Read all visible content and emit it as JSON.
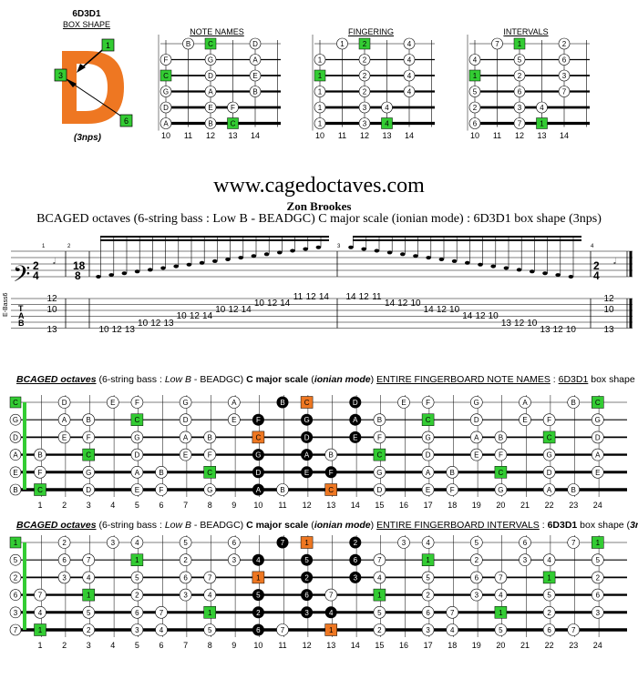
{
  "header": {
    "shape_code": "6D3D1",
    "shape_label": "BOX SHAPE",
    "shape_letter": "D",
    "shape_numbers": [
      "1",
      "3",
      "6"
    ],
    "nps": "(3nps)",
    "diagram_titles": [
      "NOTE NAMES",
      "FINGERING",
      "INTERVALS"
    ],
    "diagram_frets": [
      "10",
      "11",
      "12",
      "13",
      "14"
    ]
  },
  "site": "www.cagedoctaves.com",
  "author": "Zon Brookes",
  "subtitle": "BCAGED octaves (6-string bass : Low B - BEADGC) C major scale (ionian mode) : 6D3D1 box shape (3nps)",
  "staff": {
    "time1_top": "2",
    "time1_bot": "4",
    "time2_top": "18",
    "time2_bot": "8",
    "tab_label": "E-Bass6",
    "measure_nums": [
      "1",
      "2",
      "3",
      "4"
    ],
    "tab_numbers": [
      {
        "s": 0,
        "f": "12"
      },
      {
        "s": 1,
        "f": "10"
      },
      {
        "s": 2,
        "f": "13"
      },
      {
        "s": 2,
        "f": "10"
      },
      {
        "s": 2,
        "f": "12"
      },
      {
        "s": 2,
        "f": "13"
      },
      {
        "s": 3,
        "f": "10"
      },
      {
        "s": 3,
        "f": "12"
      },
      {
        "s": 3,
        "f": "13"
      },
      {
        "s": 4,
        "f": "10"
      },
      {
        "s": 4,
        "f": "12"
      },
      {
        "s": 4,
        "f": "14"
      },
      {
        "s": 5,
        "f": "10"
      },
      {
        "s": 5,
        "f": "12"
      },
      {
        "s": 5,
        "f": "14"
      },
      {
        "s": 6,
        "f": "10"
      },
      {
        "s": 6,
        "f": "12"
      },
      {
        "s": 6,
        "f": "14"
      },
      {
        "s": 7,
        "f": "11"
      },
      {
        "s": 7,
        "f": "12"
      },
      {
        "s": 7,
        "f": "14"
      },
      {
        "s": 7,
        "f": "14"
      },
      {
        "s": 7,
        "f": "12"
      },
      {
        "s": 7,
        "f": "11"
      },
      {
        "s": 6,
        "f": "14"
      },
      {
        "s": 6,
        "f": "12"
      },
      {
        "s": 6,
        "f": "10"
      },
      {
        "s": 5,
        "f": "14"
      },
      {
        "s": 5,
        "f": "12"
      },
      {
        "s": 5,
        "f": "10"
      },
      {
        "s": 4,
        "f": "14"
      },
      {
        "s": 4,
        "f": "12"
      },
      {
        "s": 4,
        "f": "10"
      },
      {
        "s": 3,
        "f": "13"
      },
      {
        "s": 3,
        "f": "12"
      },
      {
        "s": 3,
        "f": "10"
      },
      {
        "s": 2,
        "f": "13"
      },
      {
        "s": 2,
        "f": "12"
      },
      {
        "s": 2,
        "f": "10"
      }
    ],
    "end_numbers": [
      "12",
      "10",
      "13"
    ]
  },
  "board1": {
    "caption": {
      "p1": "BCAGED octaves",
      "p2": " (6-string bass : ",
      "p3": "Low B",
      "p4": " - BEADGC) ",
      "p5": "C major scale",
      "p6": " (",
      "p7": "ionian mode",
      "p8": ") ",
      "p9": "ENTIRE FINGERBOARD NOTE NAMES",
      "p10": " : ",
      "p11": "6D3D1",
      "p12": " box shape (",
      "p13": "3nps",
      "p14": ")"
    },
    "open": [
      "C",
      "G",
      "D",
      "A",
      "E",
      "B"
    ],
    "rows": [
      [
        "D",
        "E",
        "F",
        "G",
        "A",
        "B",
        "C",
        "D",
        "E",
        "F",
        "G",
        "A",
        "B",
        "C",
        "D",
        "E",
        "F",
        "G",
        "A",
        "B",
        "C"
      ],
      [
        "A",
        "B",
        "C",
        "D",
        "E",
        "F",
        "G",
        "A",
        "B",
        "C",
        "D",
        "E",
        "F",
        "G",
        "A",
        "B",
        "C",
        "D",
        "E",
        "F",
        "G"
      ],
      [
        "E",
        "F",
        "G",
        "A",
        "B",
        "C",
        "D",
        "E",
        "F",
        "G",
        "A",
        "B",
        "C",
        "D",
        "E",
        "F",
        "G",
        "A",
        "B",
        "C",
        "D"
      ],
      [
        "B",
        "C",
        "D",
        "E",
        "F",
        "G",
        "A",
        "B",
        "C",
        "D",
        "E",
        "F",
        "G",
        "A",
        "B",
        "C",
        "D",
        "E",
        "F",
        "G",
        "A"
      ],
      [
        "F",
        "G",
        "A",
        "B",
        "C",
        "D",
        "E",
        "F",
        "G",
        "A",
        "B",
        "C",
        "D",
        "E",
        "F",
        "G",
        "A",
        "B",
        "C",
        "D",
        "E"
      ],
      [
        "C",
        "D",
        "E",
        "F",
        "G",
        "A",
        "B",
        "C",
        "D",
        "E",
        "F",
        "G",
        "A",
        "B",
        "C",
        "D",
        "E",
        "F",
        "G",
        "A",
        "B"
      ]
    ]
  },
  "board2": {
    "caption": {
      "p1": "BCAGED octaves",
      "p2": " (6-string bass : ",
      "p3": "Low B",
      "p4": " - BEADGC) ",
      "p5": "C major scale",
      "p6": " (",
      "p7": "ionian mode",
      "p8": ") ",
      "p9": "ENTIRE FINGERBOARD INTERVALS",
      "p10": " : ",
      "p11": "6D3D1",
      "p12": " box shape (",
      "p13": "3nps",
      "p14": ")"
    },
    "open": [
      "1",
      "5",
      "2",
      "6",
      "3",
      "7"
    ],
    "rows": [
      [
        "2",
        "3",
        "4",
        "5",
        "6",
        "7",
        "1",
        "2",
        "3",
        "4",
        "5",
        "6",
        "7",
        "1",
        "2",
        "3",
        "4",
        "5",
        "6",
        "7",
        "1"
      ],
      [
        "6",
        "7",
        "1",
        "2",
        "3",
        "4",
        "5",
        "6",
        "7",
        "1",
        "2",
        "3",
        "4",
        "5",
        "6",
        "7",
        "1",
        "2",
        "3",
        "4",
        "5"
      ],
      [
        "3",
        "4",
        "5",
        "6",
        "7",
        "1",
        "2",
        "3",
        "4",
        "5",
        "6",
        "7",
        "1",
        "2",
        "3",
        "4",
        "5",
        "6",
        "7",
        "1",
        "2"
      ],
      [
        "7",
        "1",
        "2",
        "3",
        "4",
        "5",
        "6",
        "7",
        "1",
        "2",
        "3",
        "4",
        "5",
        "6",
        "7",
        "1",
        "2",
        "3",
        "4",
        "5",
        "6"
      ],
      [
        "4",
        "5",
        "6",
        "7",
        "1",
        "2",
        "3",
        "4",
        "5",
        "6",
        "7",
        "1",
        "2",
        "3",
        "4",
        "5",
        "6",
        "7",
        "1",
        "2",
        "3"
      ],
      [
        "1",
        "2",
        "3",
        "4",
        "5",
        "6",
        "7",
        "1",
        "2",
        "3",
        "4",
        "5",
        "6",
        "7",
        "1",
        "2",
        "3",
        "4",
        "5",
        "6",
        "7"
      ]
    ]
  },
  "fret_numbers": [
    "1",
    "2",
    "3",
    "4",
    "5",
    "6",
    "7",
    "8",
    "9",
    "10",
    "11",
    "12",
    "13",
    "14",
    "15",
    "16",
    "17",
    "18",
    "19",
    "20",
    "21",
    "22",
    "23",
    "24"
  ],
  "colors": {
    "root": "#33cc33",
    "orange": "#ee7722",
    "black": "#000000",
    "shape": "#ee7722"
  }
}
